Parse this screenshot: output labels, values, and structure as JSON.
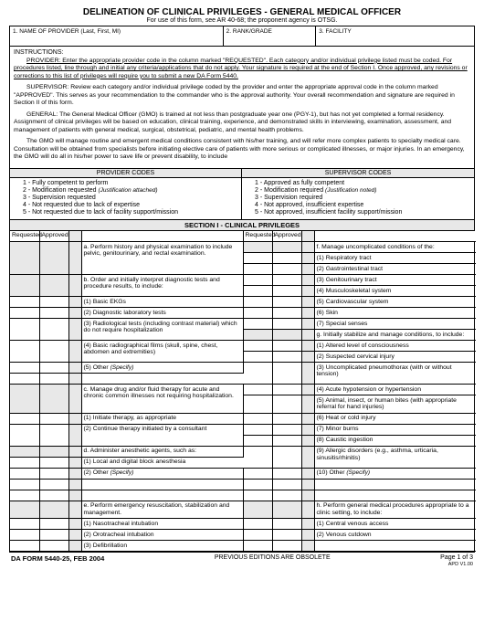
{
  "title": "DELINEATION OF CLINICAL PRIVILEGES - GENERAL MEDICAL OFFICER",
  "subtitle": "For use of this form, see AR 40-68; the proponent agency is OTSG.",
  "header_fields": {
    "f1": "1.  NAME OF PROVIDER (Last, First, MI)",
    "f2": "2.  RANK/GRADE",
    "f3": "3.  FACILITY"
  },
  "instructions": {
    "heading": "INSTRUCTIONS:",
    "provider": "PROVIDER:  Enter the appropriate provider code in the column marked \"REQUESTED\".  Each category and/or individual privilege listed must be coded.  For procedures listed, line through and initial any criteria/applications that do not apply.  Your signature is required at the end of Section I.  Once approved, any revisions or corrections to this list of privileges will require you to submit a new DA Form 5440.",
    "supervisor": "SUPERVISOR:  Review each category and/or individual privilege coded by the provider and enter the appropriate  approval code in the column marked \"APPROVED\".  This serves as your recommendation to the commander who is the approval authority.  Your overall recommendation and signature are required in Section II of this form.",
    "general": "GENERAL:  The General Medical Officer (GMO) is trained at not less than postgraduate year one (PGY-1), but has not yet completed a formal residency.  Assignment of clinical privileges will be based on education, clinical training, experience, and demonstrated skills in interviewing, examination, assessment, and management of patients with general medical, surgical, obstetrical, pediatric, and mental health problems.",
    "gmo": "The GMO will manage routine and emergent medical conditions consistent with his/her training, and will refer more complex patients to specialty medical care.  Consultation will be obtained from specialists before initiating elective care of patients with more serious or complicated illnesses, or major injuries.  In an emergency, the GMO will do all in his/her power to save life or prevent disability, to include"
  },
  "provider_codes": {
    "header": "PROVIDER CODES",
    "items": [
      "1 - Fully competent to perform",
      "2 - Modification requested (Justification attached)",
      "3 - Supervision requested",
      "4 - Not requested due to lack of expertise",
      "5 - Not requested due to lack of facility support/mission"
    ]
  },
  "supervisor_codes": {
    "header": "SUPERVISOR CODES",
    "items": [
      "1 - Approved as fully competent",
      "2 - Modification required (Justification noted)",
      "3 - Supervision required",
      "4 - Not approved, insufficient expertise",
      "5 - Not approved, insufficient facility support/mission"
    ]
  },
  "section1_header": "SECTION I - CLINICAL PRIVILEGES",
  "col_labels": {
    "requested": "Requested",
    "approved": "Approved"
  },
  "left_items": [
    {
      "shade": true,
      "t": "a.  Perform history and physical examination to include pelvic, genitourinary, and rectal examination.",
      "h": 3
    },
    {
      "shade": true,
      "t": "b.  Order and initially interpret diagnostic tests      and procedure results, to include:",
      "h": 2
    },
    {
      "t": "(1)  Basic EKGs"
    },
    {
      "t": "(2)  Diagnostic laboratory tests"
    },
    {
      "t": "(3)  Radiological tests (including contrast material) which do not require hospitalization",
      "h": 3
    },
    {
      "t": "(4)  Basic radiographical films (skull, spine, chest, abdomen and extremities)",
      "h": 2
    },
    {
      "t": "(5)  Other (Specify)"
    },
    {
      "blank": true
    },
    {
      "shade": true,
      "t": "c.  Manage drug and/or fluid therapy for acute and chronic common illnesses not requiring hospitalization.",
      "h": 3
    },
    {
      "t": "(1)  Initiate therapy, as appropriate"
    },
    {
      "t": "(2)  Continue therapy initiated by a consultant",
      "h": 2
    },
    {
      "shade": true,
      "t": "d.  Administer anesthetic agents, such as:"
    },
    {
      "t": "(1)  Local and digital block anesthesia"
    },
    {
      "t": "(2)  Other (Specify)"
    },
    {
      "blank": true
    },
    {
      "blank": true
    },
    {
      "shade": true,
      "t": "e.  Perform emergency resuscitation, stabilization and management.",
      "h": 2
    },
    {
      "t": "(1)  Nasotracheal intubation"
    },
    {
      "t": "(2)  Orotracheal intubation"
    },
    {
      "t": "(3)  Defibrillation"
    }
  ],
  "right_items": [
    {
      "shade": true,
      "t": "f.  Manage uncomplicated conditions of the:"
    },
    {
      "t": "(1)  Respiratory tract"
    },
    {
      "t": "(2)  Gastrointestinal tract"
    },
    {
      "t": "(3)  Genitourinary tract"
    },
    {
      "t": "(4)  Musculoskeletal system"
    },
    {
      "t": "(5)  Cardiovascular system"
    },
    {
      "t": "(6)  Skin"
    },
    {
      "t": "(7)  Special senses"
    },
    {
      "shade": true,
      "t": "g.  Initially stabilize and manage conditions, to include:",
      "h": 2
    },
    {
      "t": "(1)  Altered level of consciousness"
    },
    {
      "t": "(2)  Suspected cervical injury"
    },
    {
      "t": "(3)  Uncomplicated pneumothorax (with or without tension)",
      "h": 2
    },
    {
      "t": "(4)  Acute hypotension or hypertension"
    },
    {
      "t": "(5)  Animal, insect, or human bites (with appropriate referral for hand injuries)",
      "h": 2
    },
    {
      "t": "(6)  Heat or cold injury"
    },
    {
      "t": "(7)  Minor burns"
    },
    {
      "t": "(8)  Caustic ingestion"
    },
    {
      "t": "(9)  Allergic disorders (e.g., asthma, urticaria, sinusitis/rhinitis)",
      "h": 2
    },
    {
      "t": "(10)   Other (Specify)"
    },
    {
      "blank": true
    },
    {
      "blank": true
    },
    {
      "shade": true,
      "t": "h.  Perform general medical procedures appropriate to a clinic setting,  to include:",
      "h": 2
    },
    {
      "t": "(1)  Central venous access"
    },
    {
      "t": "(2)  Venous cutdown"
    }
  ],
  "footer": {
    "left": "DA FORM 5440-25, FEB 2004",
    "center": "PREVIOUS EDITIONS ARE OBSOLETE",
    "right_line1": "Page 1 of 3",
    "right_line2": "APD V1.00"
  }
}
